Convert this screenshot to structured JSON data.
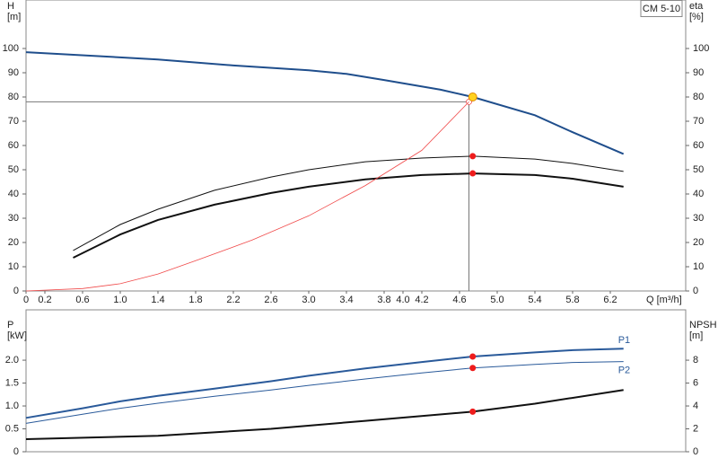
{
  "chart_data": [
    {
      "type": "line",
      "box_label": "CM 5-10",
      "ylabel": [
        "H",
        "[m]"
      ],
      "y2label": [
        "eta",
        "[%]"
      ],
      "xlabel": "Q [m³/h]",
      "xlim": [
        0,
        7
      ],
      "xticks": [
        0,
        0.2,
        0.6,
        {
          "value": 1,
          "label": "1.0"
        },
        1.4,
        1.8,
        2.2,
        2.6,
        {
          "value": 3,
          "label": "3.0"
        },
        3.4,
        3.8,
        {
          "value": 4,
          "label": "4.0"
        },
        4.2,
        4.6,
        {
          "value": 5,
          "label": "5.0"
        },
        5.4,
        5.8,
        6.2
      ],
      "ylim": [
        0,
        120
      ],
      "yticks": [
        0,
        10,
        20,
        30,
        40,
        50,
        60,
        70,
        80,
        90,
        100
      ],
      "y2lim": [
        0,
        120
      ],
      "y2ticks": [
        0,
        10,
        20,
        30,
        40,
        50,
        60,
        70,
        80,
        90,
        100
      ],
      "grid": false,
      "series": [
        {
          "color": "#1f4e8c",
          "width": 2,
          "x": [
            0,
            1.4,
            2.2,
            3.0,
            3.4,
            3.8,
            4.4,
            4.74,
            5.4,
            5.8,
            6.34
          ],
          "values": [
            98.5,
            95.5,
            93,
            91,
            89.5,
            87,
            83,
            80,
            72.5,
            65.5,
            56.5
          ]
        },
        {
          "color": "#111111",
          "width": 1,
          "axis": "y2",
          "x": [
            0.5,
            1.0,
            1.4,
            2.0,
            2.6,
            3.0,
            3.6,
            4.2,
            4.74,
            5.4,
            5.8,
            6.34
          ],
          "values": [
            16.7,
            27.4,
            33.7,
            41.5,
            47,
            50,
            53.3,
            54.8,
            55.6,
            54.4,
            52.6,
            49.3
          ]
        },
        {
          "color": "#111111",
          "width": 2,
          "axis": "y2",
          "x": [
            0.5,
            1.0,
            1.4,
            2.0,
            2.6,
            3.0,
            3.6,
            4.2,
            4.74,
            5.4,
            5.8,
            6.34
          ],
          "values": [
            13.7,
            23.3,
            29.3,
            35.6,
            40.4,
            43,
            46,
            47.8,
            48.5,
            47.8,
            46.3,
            43
          ]
        },
        {
          "color": "#f04a4a",
          "width": 0.8,
          "x": [
            0,
            0.6,
            1.0,
            1.4,
            1.8,
            2.4,
            3.0,
            3.6,
            4.2,
            4.7
          ],
          "values": [
            0,
            1,
            3,
            7,
            12.5,
            21,
            31,
            43.5,
            58,
            78
          ]
        }
      ],
      "duty": {
        "x": 4.7,
        "y": 78
      },
      "markers": [
        {
          "x": 4.74,
          "y": 80,
          "color": "#ffd21f"
        },
        {
          "x": 4.74,
          "y": 55.6,
          "color": "#ee1c1c",
          "axis": "y2"
        },
        {
          "x": 4.74,
          "y": 48.5,
          "color": "#ee1c1c",
          "axis": "y2"
        }
      ]
    },
    {
      "type": "line",
      "ylabel": [
        "P",
        "[kW]"
      ],
      "y2label": [
        "NPSH",
        "[m]"
      ],
      "xlim": [
        0,
        7
      ],
      "ylim": [
        0,
        3.1
      ],
      "yticks": [
        0,
        0.5,
        {
          "value": 1,
          "label": "1.0"
        },
        1.5,
        {
          "value": 2,
          "label": "2.0"
        }
      ],
      "y2lim": [
        0,
        12.4
      ],
      "y2ticks": [
        0,
        2,
        4,
        6,
        8
      ],
      "grid": false,
      "series": [
        {
          "name": "P1",
          "color": "#2a5a9a",
          "width": 2,
          "x": [
            0,
            0.6,
            1.0,
            1.4,
            2.0,
            2.6,
            3.0,
            3.6,
            4.2,
            4.74,
            5.4,
            5.8,
            6.34
          ],
          "values": [
            0.74,
            0.95,
            1.1,
            1.22,
            1.38,
            1.54,
            1.66,
            1.82,
            1.96,
            2.08,
            2.17,
            2.22,
            2.25
          ]
        },
        {
          "name": "P2",
          "color": "#2a5a9a",
          "width": 1,
          "x": [
            0,
            0.6,
            1.0,
            1.4,
            2.0,
            2.6,
            3.0,
            3.6,
            4.2,
            4.74,
            5.4,
            5.8,
            6.34
          ],
          "values": [
            0.62,
            0.82,
            0.95,
            1.06,
            1.21,
            1.35,
            1.45,
            1.59,
            1.72,
            1.83,
            1.91,
            1.95,
            1.97
          ]
        },
        {
          "color": "#111111",
          "width": 2,
          "axis": "y2",
          "x": [
            0,
            1.4,
            2.6,
            3.6,
            4.74,
            5.4,
            6.34
          ],
          "values": [
            1.1,
            1.4,
            2.0,
            2.7,
            3.5,
            4.2,
            5.4
          ]
        }
      ],
      "markers": [
        {
          "x": 4.74,
          "y": 2.08,
          "color": "#ee1c1c"
        },
        {
          "x": 4.74,
          "y": 1.83,
          "color": "#ee1c1c"
        },
        {
          "x": 4.74,
          "y": 3.5,
          "color": "#ee1c1c",
          "axis": "y2"
        }
      ]
    }
  ]
}
